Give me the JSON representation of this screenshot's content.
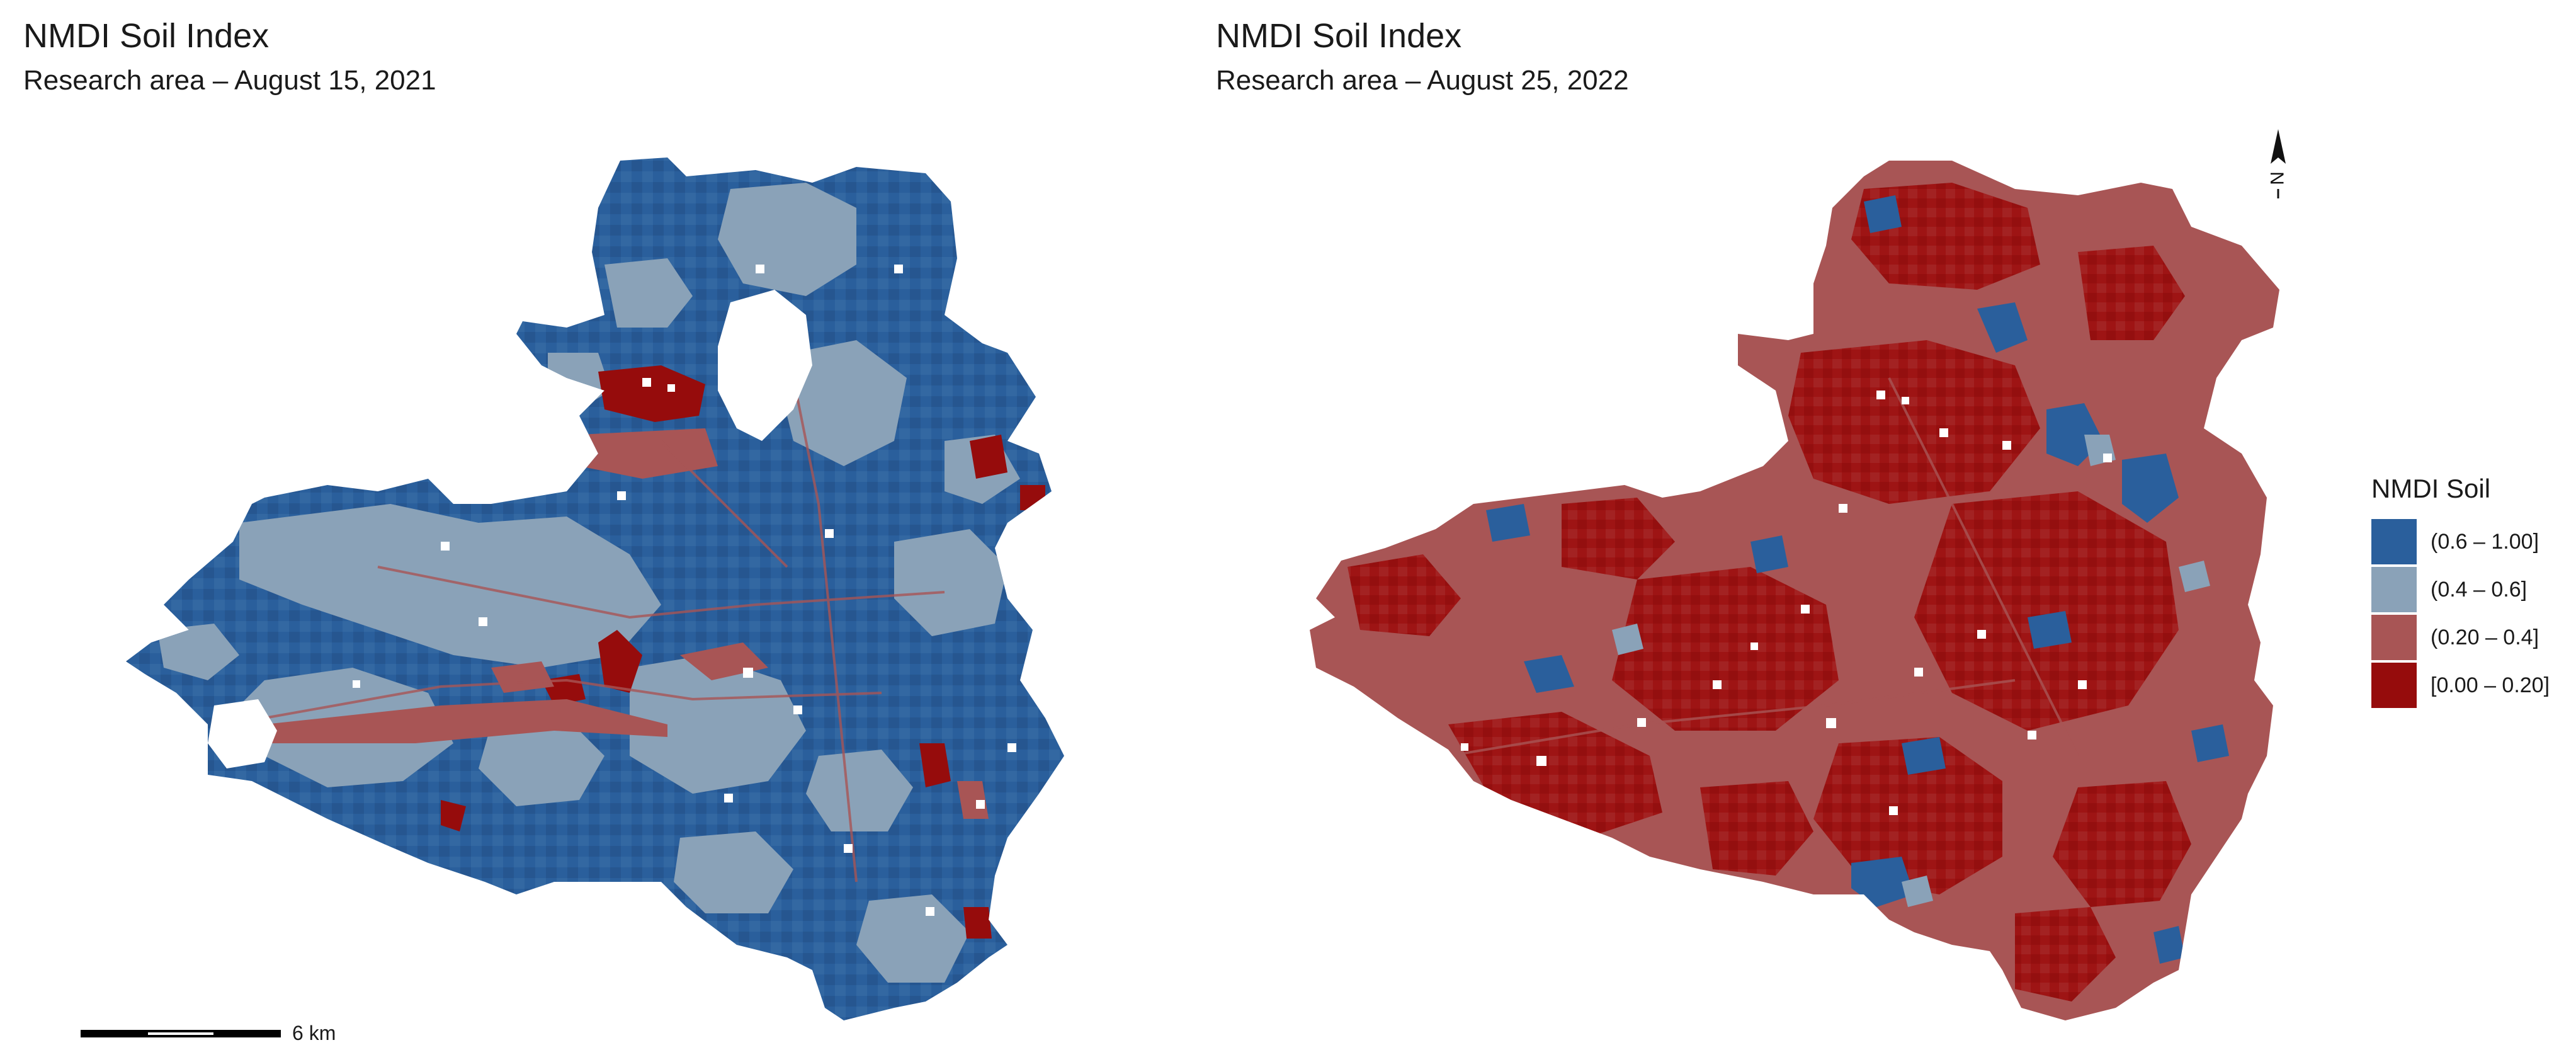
{
  "panels": [
    {
      "title": "NMDI Soil Index",
      "subtitle": "Research area – August 15, 2021"
    },
    {
      "title": "NMDI Soil Index",
      "subtitle": "Research area – August 25, 2022"
    }
  ],
  "legend": {
    "title": "NMDI Soil",
    "classes": [
      {
        "label": "(0.6 – 1.00]",
        "color": "#2a5f9c"
      },
      {
        "label": "(0.4 – 0.6]",
        "color": "#8aa2b8"
      },
      {
        "label": "(0.20 – 0.4]",
        "color": "#a85555"
      },
      {
        "label": "[0.00 – 0.20]",
        "color": "#960c0c"
      }
    ]
  },
  "scale_bar": {
    "label": "6 km"
  },
  "north_arrow": {
    "label": "N",
    "icon": "north-arrow-icon"
  },
  "colors": {
    "moisture_high": "#2a5f9c",
    "moisture_mid": "#8aa2b8",
    "moisture_low": "#a85555",
    "moisture_very_low": "#960c0c",
    "nodata": "#ffffff"
  }
}
